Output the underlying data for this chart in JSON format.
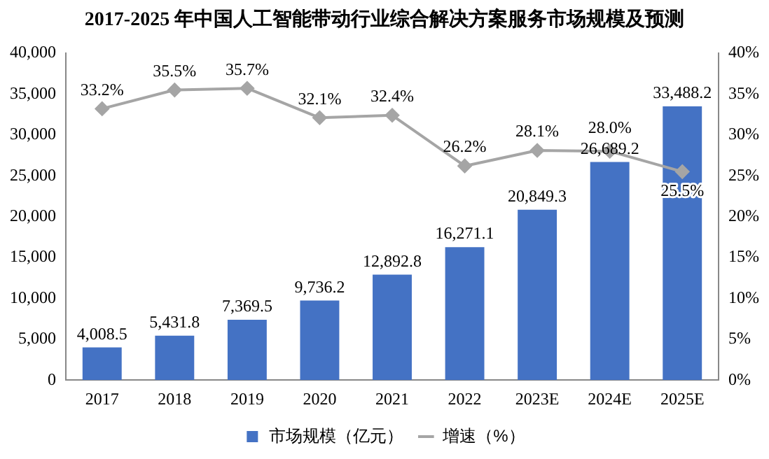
{
  "chart_data": {
    "type": "bar",
    "title": "2017-2025 年中国人工智能带动行业综合解决方案服务市场规模及预测",
    "categories": [
      "2017",
      "2018",
      "2019",
      "2020",
      "2021",
      "2022",
      "2023E",
      "2024E",
      "2025E"
    ],
    "series": [
      {
        "name": "市场规模（亿元）",
        "color": "#4472c4",
        "values": [
          4008.5,
          5431.8,
          7369.5,
          9736.2,
          12892.8,
          16271.1,
          20849.3,
          26689.2,
          33488.2
        ],
        "value_labels": [
          "4,008.5",
          "5,431.8",
          "7,369.5",
          "9,736.2",
          "12,892.8",
          "16,271.1",
          "20,849.3",
          "26,689.2",
          "33,488.2"
        ]
      },
      {
        "name": "增速（%）",
        "type": "line",
        "axis": "y2",
        "color": "#a5a5a5",
        "marker": "diamond",
        "values": [
          33.2,
          35.5,
          35.7,
          32.1,
          32.4,
          26.2,
          28.1,
          28.0,
          25.5
        ],
        "value_labels": [
          "33.2%",
          "35.5%",
          "35.7%",
          "32.1%",
          "32.4%",
          "26.2%",
          "28.1%",
          "28.0%",
          "25.5%"
        ]
      }
    ],
    "ylim": [
      0,
      40000
    ],
    "yticks": [
      0,
      {
        "value": 5000,
        "label": "5,000"
      },
      {
        "value": 10000,
        "label": "10,000"
      },
      {
        "value": 15000,
        "label": "15,000"
      },
      {
        "value": 20000,
        "label": "20,000"
      },
      {
        "value": 25000,
        "label": "25,000"
      },
      {
        "value": 30000,
        "label": "30,000"
      },
      {
        "value": 35000,
        "label": "35,000"
      },
      {
        "value": 40000,
        "label": "40,000"
      }
    ],
    "y2lim": [
      0,
      40
    ],
    "y2ticks": [
      {
        "value": 0,
        "label": "0%"
      },
      {
        "value": 5,
        "label": "5%"
      },
      {
        "value": 10,
        "label": "10%"
      },
      {
        "value": 15,
        "label": "15%"
      },
      {
        "value": 20,
        "label": "20%"
      },
      {
        "value": 25,
        "label": "25%"
      },
      {
        "value": 30,
        "label": "30%"
      },
      {
        "value": 35,
        "label": "35%"
      },
      {
        "value": 40,
        "label": "40%"
      }
    ],
    "grid": false,
    "legend": "bottom"
  }
}
